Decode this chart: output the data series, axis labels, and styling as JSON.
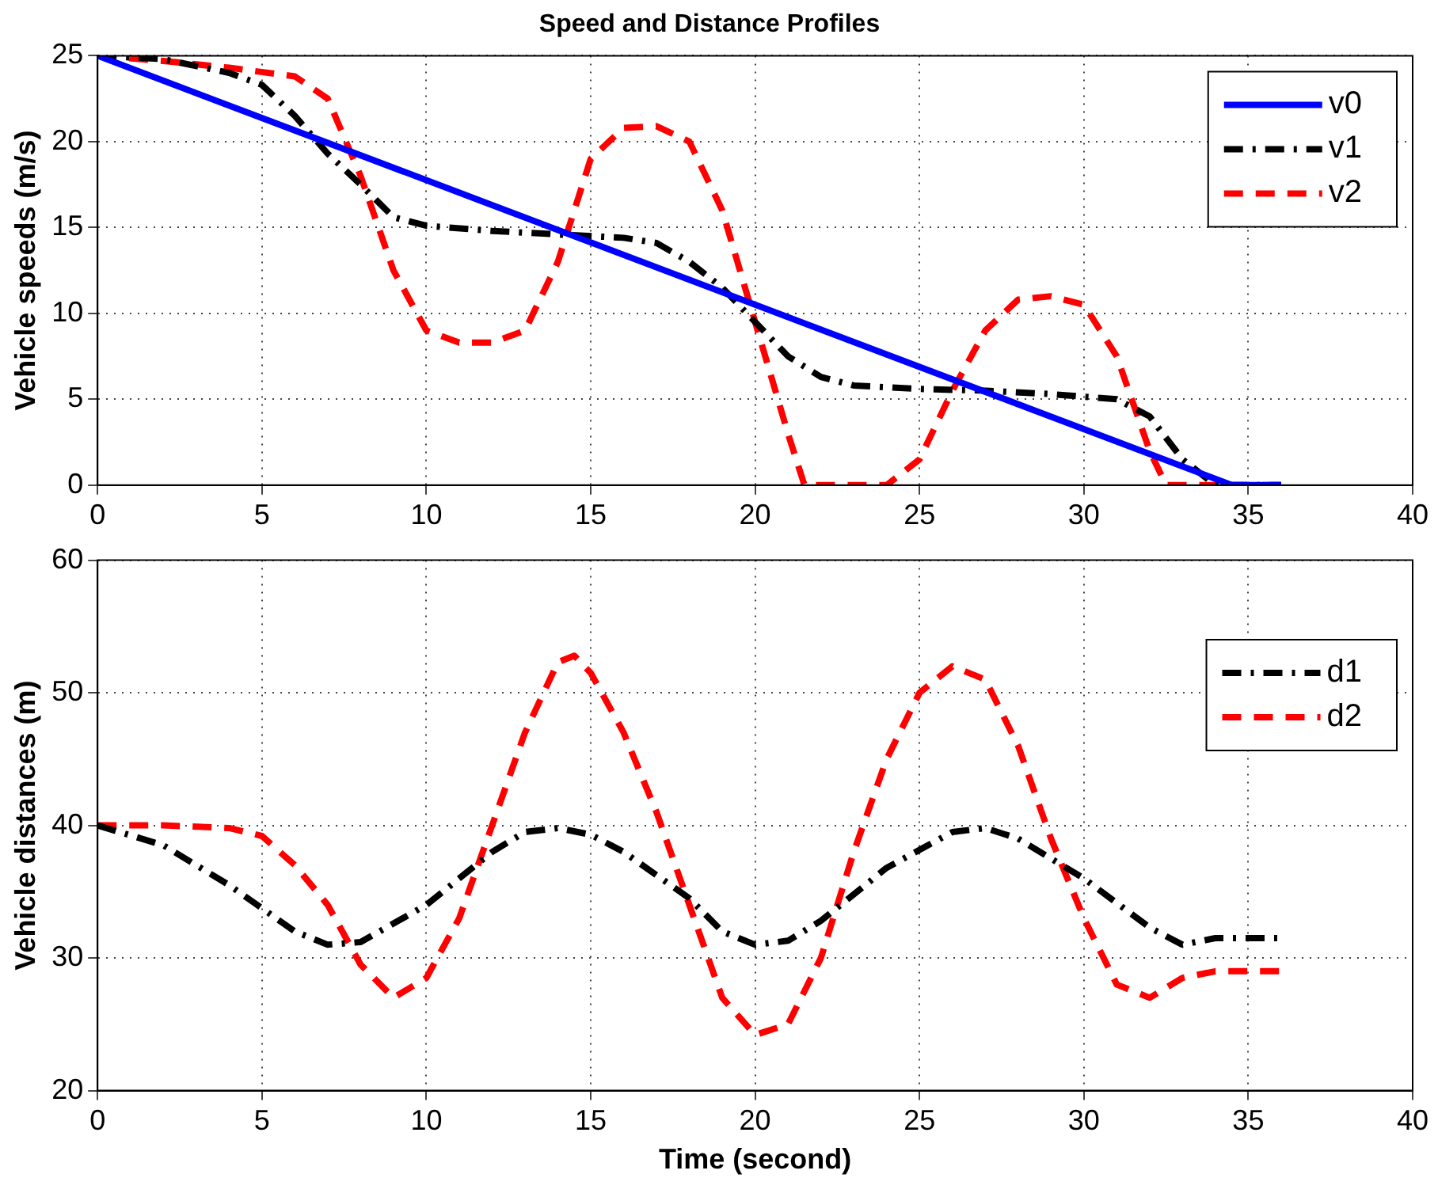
{
  "chart_data": [
    {
      "type": "line",
      "title": "Speed and Distance Profiles",
      "ylabel": "Vehicle speeds (m/s)",
      "xlim": [
        0,
        40
      ],
      "xticks": [
        0,
        5,
        10,
        15,
        20,
        25,
        30,
        35,
        40
      ],
      "ylim": [
        0,
        25
      ],
      "yticks": [
        0,
        5,
        10,
        15,
        20,
        25
      ],
      "grid": true,
      "legend": "top right",
      "series": [
        {
          "name": "v0",
          "color": "#0000ff",
          "line_style": "solid",
          "x": [
            0,
            34.5,
            36
          ],
          "values": [
            25,
            0,
            0
          ]
        },
        {
          "name": "v1",
          "color": "#000000",
          "line_style": "dashdot",
          "x": [
            0,
            2,
            4,
            5,
            6,
            7,
            8,
            9,
            10,
            12,
            14,
            16,
            17,
            18,
            19,
            20,
            21,
            22,
            23,
            25,
            27,
            29,
            31,
            32,
            33,
            34,
            36
          ],
          "values": [
            25,
            24.8,
            24,
            23.3,
            21.5,
            19.3,
            17.5,
            15.6,
            15.1,
            14.8,
            14.6,
            14.4,
            14.1,
            13,
            11.5,
            9.5,
            7.5,
            6.3,
            5.8,
            5.6,
            5.5,
            5.3,
            5,
            4,
            1.5,
            0,
            0
          ]
        },
        {
          "name": "v2",
          "color": "#ff0000",
          "line_style": "dashed",
          "x": [
            0,
            2,
            4,
            6,
            7,
            8,
            9,
            10,
            11,
            12,
            13,
            14,
            15,
            16,
            17,
            18,
            19,
            20,
            21,
            21.5,
            24,
            25,
            26,
            27,
            28,
            29,
            30,
            31,
            32,
            32.5,
            36
          ],
          "values": [
            25,
            24.7,
            24.3,
            23.8,
            22.5,
            18,
            12.5,
            9,
            8.3,
            8.3,
            9,
            13,
            19,
            20.8,
            20.9,
            20,
            16,
            9.5,
            3,
            0,
            0,
            1.5,
            5.5,
            9,
            10.8,
            11,
            10.5,
            7.5,
            2,
            0,
            0
          ]
        }
      ]
    },
    {
      "type": "line",
      "xlabel": "Time (second)",
      "ylabel": "Vehicle distances (m)",
      "xlim": [
        0,
        40
      ],
      "xticks": [
        0,
        5,
        10,
        15,
        20,
        25,
        30,
        35,
        40
      ],
      "ylim": [
        20,
        60
      ],
      "yticks": [
        20,
        30,
        40,
        50,
        60
      ],
      "grid": true,
      "legend": "right",
      "series": [
        {
          "name": "d1",
          "color": "#000000",
          "line_style": "dashdot",
          "x": [
            0,
            2,
            4,
            6,
            7,
            8,
            10,
            12,
            13,
            14,
            15,
            16,
            18,
            19,
            20,
            21,
            22,
            24,
            26,
            27,
            28,
            30,
            32,
            33,
            34,
            36
          ],
          "values": [
            40,
            38.5,
            35.5,
            32,
            31,
            31.2,
            34,
            38,
            39.5,
            39.8,
            39.3,
            38,
            34.5,
            32,
            31,
            31.3,
            32.8,
            36.8,
            39.5,
            39.8,
            39,
            36,
            32.3,
            31,
            31.5,
            31.5
          ]
        },
        {
          "name": "d2",
          "color": "#ff0000",
          "line_style": "dashed",
          "x": [
            0,
            2,
            4,
            5,
            6,
            7,
            8,
            9,
            10,
            11,
            12,
            13,
            14,
            14.5,
            15,
            16,
            17,
            18,
            19,
            20,
            21,
            22,
            23,
            24,
            25,
            26,
            27,
            28,
            29,
            30,
            31,
            32,
            33,
            34,
            36
          ],
          "values": [
            40,
            40,
            39.8,
            39.2,
            37,
            34,
            29.5,
            27,
            28.5,
            33,
            40,
            47,
            52.3,
            52.8,
            51.5,
            47,
            41,
            34,
            27,
            24.2,
            25,
            30,
            38,
            45,
            50,
            52,
            51,
            46,
            39,
            33,
            28,
            27,
            28.5,
            29,
            29
          ]
        }
      ]
    }
  ]
}
